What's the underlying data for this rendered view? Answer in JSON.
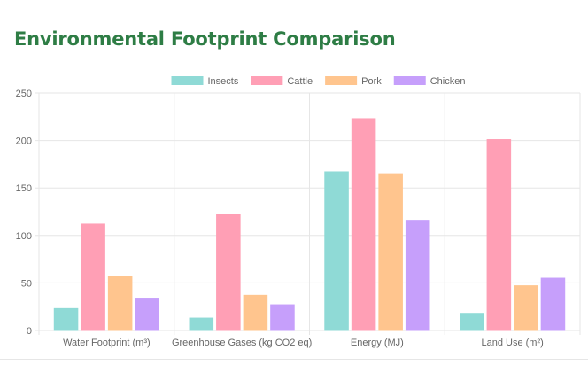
{
  "page": {
    "title": "Environmental Footprint Comparison"
  },
  "colors": {
    "title": "#2e7d45",
    "grid": "#e6e6e6",
    "axis_text": "#666666"
  },
  "chart_data": {
    "type": "bar",
    "title": "",
    "xlabel": "",
    "ylabel": "",
    "categories": [
      "Water Footprint (m³)",
      "Greenhouse Gases (kg CO2 eq)",
      "Energy (MJ)",
      "Land Use (m²)"
    ],
    "ylim": [
      0,
      250
    ],
    "yticks": [
      0,
      50,
      100,
      150,
      200,
      250
    ],
    "grid": true,
    "legend_position": "top-center",
    "series": [
      {
        "name": "Insects",
        "color": "#8fdad6",
        "values": [
          23,
          13,
          167,
          18
        ]
      },
      {
        "name": "Cattle",
        "color": "#ff9fb5",
        "values": [
          112,
          122,
          223,
          201
        ]
      },
      {
        "name": "Pork",
        "color": "#ffc58e",
        "values": [
          57,
          37,
          165,
          47
        ]
      },
      {
        "name": "Chicken",
        "color": "#c69ffb",
        "values": [
          34,
          27,
          116,
          55
        ]
      }
    ]
  }
}
